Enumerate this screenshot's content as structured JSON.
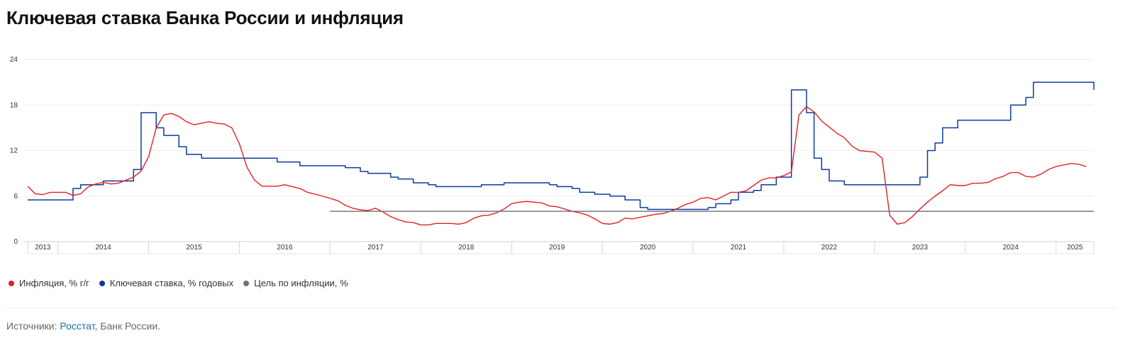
{
  "title": "Ключевая ставка Банка России и инфляция",
  "legend": [
    {
      "label": "Инфляция, % г/г",
      "color": "#e31e24"
    },
    {
      "label": "Ключевая ставка, % годовых",
      "color": "#0d3b9e"
    },
    {
      "label": "Цель по инфляции, %",
      "color": "#6e6e7e"
    }
  ],
  "sources": {
    "prefix": "Источники: ",
    "link": "Росстат",
    "suffix": ", Банк России."
  },
  "chart_data": {
    "type": "line",
    "title": "Ключевая ставка Банка России и инфляция",
    "xlabel": "",
    "ylabel": "",
    "xlim": [
      "2013-09",
      "2025-06"
    ],
    "ylim": [
      0,
      24
    ],
    "yticks": [
      0,
      6,
      12,
      18,
      24
    ],
    "xticks": [
      "2013",
      "2014",
      "2015",
      "2016",
      "2017",
      "2018",
      "2019",
      "2020",
      "2021",
      "2022",
      "2023",
      "2024",
      "2025"
    ],
    "grid": true,
    "legend_position": "bottom-left",
    "series": [
      {
        "name": "Ключевая ставка, % годовых",
        "style": "step",
        "color": "#0d3b9e",
        "points": [
          [
            "2013-09",
            5.5
          ],
          [
            "2014-03",
            7.0
          ],
          [
            "2014-04",
            7.5
          ],
          [
            "2014-07",
            8.0
          ],
          [
            "2014-11",
            9.5
          ],
          [
            "2014-12",
            17.0
          ],
          [
            "2015-02",
            15.0
          ],
          [
            "2015-03",
            14.0
          ],
          [
            "2015-05",
            12.5
          ],
          [
            "2015-06",
            11.5
          ],
          [
            "2015-08",
            11.0
          ],
          [
            "2016-06",
            10.5
          ],
          [
            "2016-09",
            10.0
          ],
          [
            "2017-03",
            9.75
          ],
          [
            "2017-05",
            9.25
          ],
          [
            "2017-06",
            9.0
          ],
          [
            "2017-09",
            8.5
          ],
          [
            "2017-10",
            8.25
          ],
          [
            "2017-12",
            7.75
          ],
          [
            "2018-02",
            7.5
          ],
          [
            "2018-03",
            7.25
          ],
          [
            "2018-09",
            7.5
          ],
          [
            "2018-12",
            7.75
          ],
          [
            "2019-06",
            7.5
          ],
          [
            "2019-07",
            7.25
          ],
          [
            "2019-09",
            7.0
          ],
          [
            "2019-10",
            6.5
          ],
          [
            "2019-12",
            6.25
          ],
          [
            "2020-02",
            6.0
          ],
          [
            "2020-04",
            5.5
          ],
          [
            "2020-06",
            4.5
          ],
          [
            "2020-07",
            4.25
          ],
          [
            "2021-03",
            4.5
          ],
          [
            "2021-04",
            5.0
          ],
          [
            "2021-06",
            5.5
          ],
          [
            "2021-07",
            6.5
          ],
          [
            "2021-09",
            6.75
          ],
          [
            "2021-10",
            7.5
          ],
          [
            "2021-12",
            8.5
          ],
          [
            "2022-02",
            9.5
          ],
          [
            "2022-02",
            20.0
          ],
          [
            "2022-04",
            17.0
          ],
          [
            "2022-05",
            14.0
          ],
          [
            "2022-05",
            11.0
          ],
          [
            "2022-06",
            9.5
          ],
          [
            "2022-07",
            8.0
          ],
          [
            "2022-09",
            7.5
          ],
          [
            "2023-07",
            8.5
          ],
          [
            "2023-08",
            12.0
          ],
          [
            "2023-09",
            13.0
          ],
          [
            "2023-10",
            15.0
          ],
          [
            "2023-12",
            16.0
          ],
          [
            "2024-07",
            18.0
          ],
          [
            "2024-09",
            19.0
          ],
          [
            "2024-10",
            21.0
          ],
          [
            "2025-06",
            20.0
          ]
        ]
      },
      {
        "name": "Инфляция, % г/г",
        "style": "line",
        "color": "#e31e24",
        "points": [
          [
            "2013-09",
            7.3
          ],
          [
            "2013-10",
            6.3
          ],
          [
            "2013-11",
            6.2
          ],
          [
            "2013-12",
            6.5
          ],
          [
            "2014-02",
            6.5
          ],
          [
            "2014-03",
            6.1
          ],
          [
            "2014-04",
            6.3
          ],
          [
            "2014-05",
            7.2
          ],
          [
            "2014-06",
            7.6
          ],
          [
            "2014-07",
            7.8
          ],
          [
            "2014-08",
            7.6
          ],
          [
            "2014-09",
            7.7
          ],
          [
            "2014-10",
            8.1
          ],
          [
            "2014-11",
            8.5
          ],
          [
            "2014-12",
            9.3
          ],
          [
            "2015-01",
            11.2
          ],
          [
            "2015-02",
            15.0
          ],
          [
            "2015-03",
            16.7
          ],
          [
            "2015-04",
            16.9
          ],
          [
            "2015-05",
            16.5
          ],
          [
            "2015-06",
            15.8
          ],
          [
            "2015-07",
            15.4
          ],
          [
            "2015-08",
            15.6
          ],
          [
            "2015-09",
            15.8
          ],
          [
            "2015-10",
            15.6
          ],
          [
            "2015-11",
            15.5
          ],
          [
            "2015-12",
            15.0
          ],
          [
            "2016-01",
            12.9
          ],
          [
            "2016-02",
            9.8
          ],
          [
            "2016-03",
            8.1
          ],
          [
            "2016-04",
            7.3
          ],
          [
            "2016-06",
            7.3
          ],
          [
            "2016-07",
            7.5
          ],
          [
            "2016-09",
            7.0
          ],
          [
            "2016-10",
            6.5
          ],
          [
            "2016-12",
            6.0
          ],
          [
            "2017-02",
            5.4
          ],
          [
            "2017-03",
            4.8
          ],
          [
            "2017-04",
            4.4
          ],
          [
            "2017-05",
            4.2
          ],
          [
            "2017-06",
            4.1
          ],
          [
            "2017-07",
            4.4
          ],
          [
            "2017-08",
            3.9
          ],
          [
            "2017-09",
            3.3
          ],
          [
            "2017-10",
            2.9
          ],
          [
            "2017-11",
            2.6
          ],
          [
            "2017-12",
            2.5
          ],
          [
            "2018-01",
            2.2
          ],
          [
            "2018-02",
            2.2
          ],
          [
            "2018-03",
            2.4
          ],
          [
            "2018-05",
            2.4
          ],
          [
            "2018-06",
            2.3
          ],
          [
            "2018-07",
            2.5
          ],
          [
            "2018-08",
            3.1
          ],
          [
            "2018-09",
            3.4
          ],
          [
            "2018-10",
            3.5
          ],
          [
            "2018-11",
            3.8
          ],
          [
            "2018-12",
            4.3
          ],
          [
            "2019-01",
            5.0
          ],
          [
            "2019-02",
            5.2
          ],
          [
            "2019-03",
            5.3
          ],
          [
            "2019-05",
            5.1
          ],
          [
            "2019-06",
            4.7
          ],
          [
            "2019-07",
            4.6
          ],
          [
            "2019-08",
            4.3
          ],
          [
            "2019-09",
            4.0
          ],
          [
            "2019-10",
            3.8
          ],
          [
            "2019-11",
            3.5
          ],
          [
            "2019-12",
            3.0
          ],
          [
            "2020-01",
            2.4
          ],
          [
            "2020-02",
            2.3
          ],
          [
            "2020-03",
            2.5
          ],
          [
            "2020-04",
            3.1
          ],
          [
            "2020-05",
            3.0
          ],
          [
            "2020-06",
            3.2
          ],
          [
            "2020-07",
            3.4
          ],
          [
            "2020-08",
            3.6
          ],
          [
            "2020-09",
            3.7
          ],
          [
            "2020-10",
            4.0
          ],
          [
            "2020-11",
            4.4
          ],
          [
            "2020-12",
            4.9
          ],
          [
            "2021-01",
            5.2
          ],
          [
            "2021-02",
            5.7
          ],
          [
            "2021-03",
            5.8
          ],
          [
            "2021-04",
            5.5
          ],
          [
            "2021-05",
            6.0
          ],
          [
            "2021-06",
            6.5
          ],
          [
            "2021-07",
            6.5
          ],
          [
            "2021-08",
            6.7
          ],
          [
            "2021-09",
            7.4
          ],
          [
            "2021-10",
            8.1
          ],
          [
            "2021-11",
            8.4
          ],
          [
            "2021-12",
            8.4
          ],
          [
            "2022-01",
            8.7
          ],
          [
            "2022-02",
            9.2
          ],
          [
            "2022-03",
            16.7
          ],
          [
            "2022-04",
            17.8
          ],
          [
            "2022-05",
            17.1
          ],
          [
            "2022-06",
            15.9
          ],
          [
            "2022-07",
            15.1
          ],
          [
            "2022-08",
            14.3
          ],
          [
            "2022-09",
            13.7
          ],
          [
            "2022-10",
            12.6
          ],
          [
            "2022-11",
            12.0
          ],
          [
            "2022-12",
            11.9
          ],
          [
            "2023-01",
            11.8
          ],
          [
            "2023-02",
            11.0
          ],
          [
            "2023-03",
            3.5
          ],
          [
            "2023-04",
            2.3
          ],
          [
            "2023-05",
            2.5
          ],
          [
            "2023-06",
            3.3
          ],
          [
            "2023-07",
            4.3
          ],
          [
            "2023-08",
            5.2
          ],
          [
            "2023-09",
            6.0
          ],
          [
            "2023-10",
            6.7
          ],
          [
            "2023-11",
            7.5
          ],
          [
            "2023-12",
            7.4
          ],
          [
            "2024-01",
            7.4
          ],
          [
            "2024-02",
            7.7
          ],
          [
            "2024-03",
            7.7
          ],
          [
            "2024-04",
            7.8
          ],
          [
            "2024-05",
            8.3
          ],
          [
            "2024-06",
            8.6
          ],
          [
            "2024-07",
            9.1
          ],
          [
            "2024-08",
            9.1
          ],
          [
            "2024-09",
            8.6
          ],
          [
            "2024-10",
            8.5
          ],
          [
            "2024-11",
            8.9
          ],
          [
            "2024-12",
            9.5
          ],
          [
            "2025-01",
            9.9
          ],
          [
            "2025-02",
            10.1
          ],
          [
            "2025-03",
            10.3
          ],
          [
            "2025-04",
            10.2
          ],
          [
            "2025-05",
            9.9
          ]
        ]
      },
      {
        "name": "Цель по инфляции, %",
        "style": "line",
        "color": "#6e6e7e",
        "points": [
          [
            "2017-01",
            4.0
          ],
          [
            "2025-06",
            4.0
          ]
        ]
      }
    ]
  }
}
